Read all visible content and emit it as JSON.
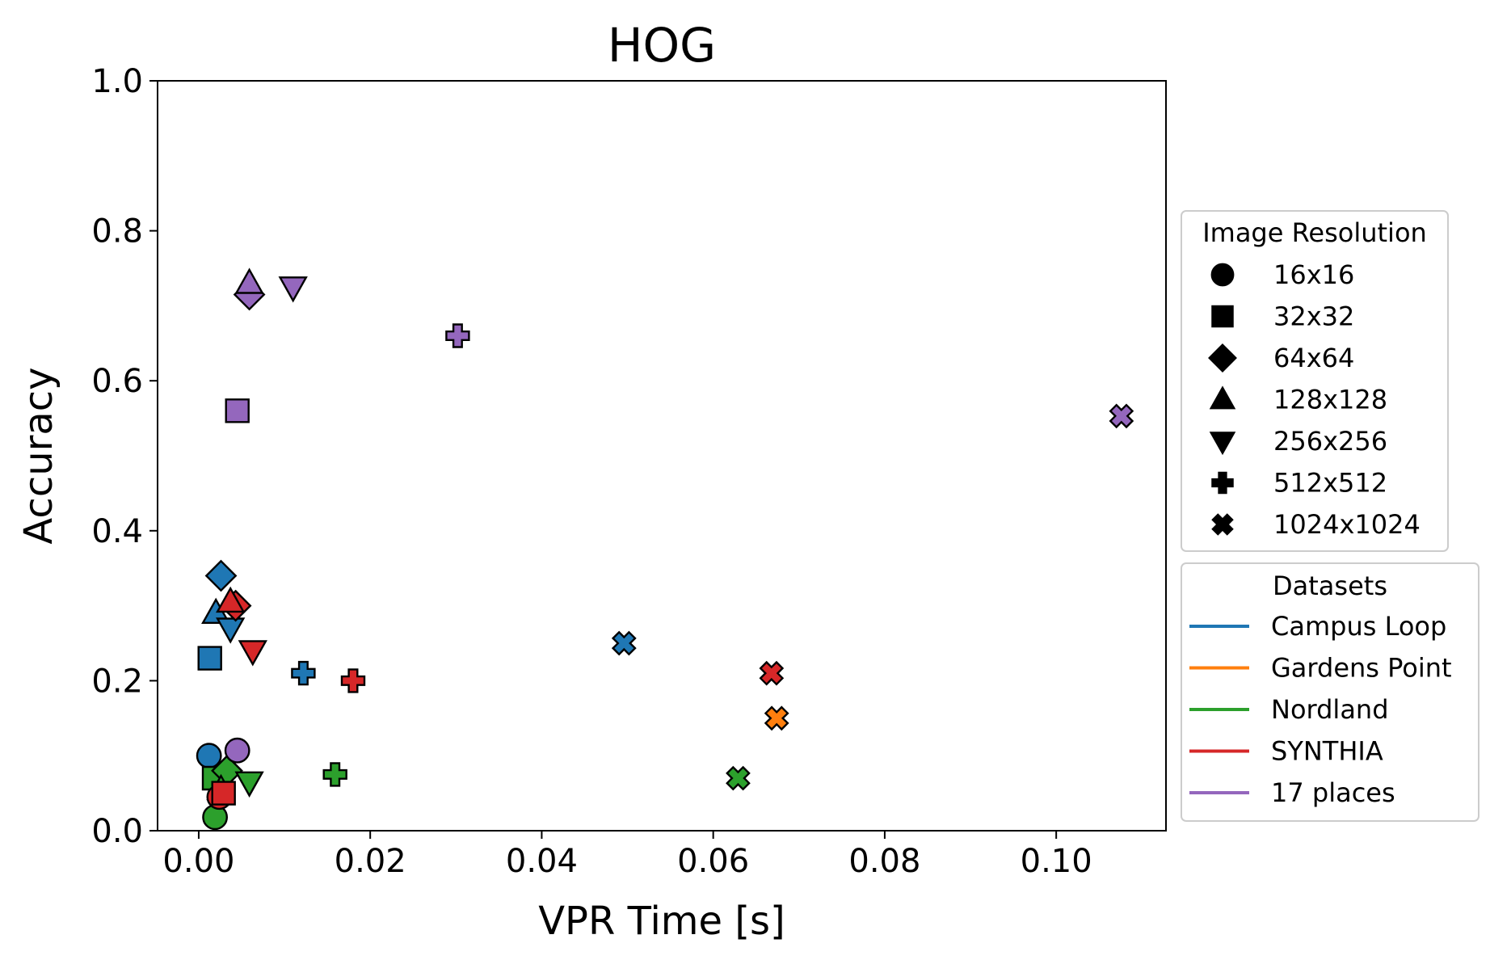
{
  "chart_data": {
    "type": "scatter",
    "title": "HOG",
    "xlabel": "VPR Time [s]",
    "ylabel": "Accuracy",
    "xlim": [
      -0.0048,
      0.1128
    ],
    "ylim": [
      0.0,
      1.0
    ],
    "x_ticks": [
      {
        "value": 0.0,
        "label": "0.00"
      },
      {
        "value": 0.02,
        "label": "0.02"
      },
      {
        "value": 0.04,
        "label": "0.04"
      },
      {
        "value": 0.06,
        "label": "0.06"
      },
      {
        "value": 0.08,
        "label": "0.08"
      },
      {
        "value": 0.1,
        "label": "0.10"
      }
    ],
    "y_ticks": [
      {
        "value": 0.0,
        "label": "0.0"
      },
      {
        "value": 0.2,
        "label": "0.2"
      },
      {
        "value": 0.4,
        "label": "0.4"
      },
      {
        "value": 0.6,
        "label": "0.6"
      },
      {
        "value": 0.8,
        "label": "0.8"
      },
      {
        "value": 1.0,
        "label": "1.0"
      }
    ],
    "grid": false,
    "legend_placement": "right, outside plot",
    "legends": {
      "resolution": {
        "title": "Image Resolution",
        "entries": [
          {
            "marker": "circle",
            "label": "16x16"
          },
          {
            "marker": "square",
            "label": "32x32"
          },
          {
            "marker": "diamond",
            "label": "64x64"
          },
          {
            "marker": "triangle-up",
            "label": "128x128"
          },
          {
            "marker": "triangle-down",
            "label": "256x256"
          },
          {
            "marker": "plus",
            "label": "512x512"
          },
          {
            "marker": "x",
            "label": "1024x1024"
          }
        ]
      },
      "datasets": {
        "title": "Datasets",
        "entries": [
          {
            "label": "Campus Loop",
            "color": "#1f77b4"
          },
          {
            "label": "Gardens Point",
            "color": "#ff7f0e"
          },
          {
            "label": "Nordland",
            "color": "#2ca02c"
          },
          {
            "label": "SYNTHIA",
            "color": "#d62728"
          },
          {
            "label": "17 places",
            "color": "#9467bd"
          }
        ]
      }
    },
    "series": [
      {
        "name": "Campus Loop",
        "color": "#1f77b4",
        "points": [
          {
            "resolution": "16x16",
            "x": 0.0012,
            "y": 0.1
          },
          {
            "resolution": "32x32",
            "x": 0.0013,
            "y": 0.23
          },
          {
            "resolution": "64x64",
            "x": 0.0026,
            "y": 0.34
          },
          {
            "resolution": "128x128",
            "x": 0.002,
            "y": 0.29
          },
          {
            "resolution": "256x256",
            "x": 0.0037,
            "y": 0.27
          },
          {
            "resolution": "512x512",
            "x": 0.0122,
            "y": 0.21
          },
          {
            "resolution": "1024x1024",
            "x": 0.0496,
            "y": 0.25
          }
        ]
      },
      {
        "name": "Gardens Point",
        "color": "#ff7f0e",
        "points": [
          {
            "resolution": "1024x1024",
            "x": 0.0674,
            "y": 0.15
          }
        ]
      },
      {
        "name": "Nordland",
        "color": "#2ca02c",
        "points": [
          {
            "resolution": "16x16",
            "x": 0.0019,
            "y": 0.018
          },
          {
            "resolution": "32x32",
            "x": 0.0018,
            "y": 0.07
          },
          {
            "resolution": "64x64",
            "x": 0.0033,
            "y": 0.08
          },
          {
            "resolution": "128x128",
            "x": 0.0026,
            "y": 0.055
          },
          {
            "resolution": "256x256",
            "x": 0.0059,
            "y": 0.065
          },
          {
            "resolution": "512x512",
            "x": 0.0159,
            "y": 0.075
          },
          {
            "resolution": "1024x1024",
            "x": 0.0629,
            "y": 0.07
          }
        ]
      },
      {
        "name": "SYNTHIA",
        "color": "#d62728",
        "points": [
          {
            "resolution": "16x16",
            "x": 0.0024,
            "y": 0.045
          },
          {
            "resolution": "32x32",
            "x": 0.0029,
            "y": 0.05
          },
          {
            "resolution": "64x64",
            "x": 0.0043,
            "y": 0.3
          },
          {
            "resolution": "128x128",
            "x": 0.0037,
            "y": 0.305
          },
          {
            "resolution": "256x256",
            "x": 0.0063,
            "y": 0.24
          },
          {
            "resolution": "512x512",
            "x": 0.018,
            "y": 0.2
          },
          {
            "resolution": "1024x1024",
            "x": 0.0668,
            "y": 0.21
          }
        ]
      },
      {
        "name": "17 places",
        "color": "#9467bd",
        "points": [
          {
            "resolution": "16x16",
            "x": 0.0045,
            "y": 0.107
          },
          {
            "resolution": "32x32",
            "x": 0.0045,
            "y": 0.56
          },
          {
            "resolution": "64x64",
            "x": 0.0059,
            "y": 0.715
          },
          {
            "resolution": "128x128",
            "x": 0.0059,
            "y": 0.73
          },
          {
            "resolution": "256x256",
            "x": 0.011,
            "y": 0.725
          },
          {
            "resolution": "512x512",
            "x": 0.0302,
            "y": 0.66
          },
          {
            "resolution": "1024x1024",
            "x": 0.1076,
            "y": 0.553
          }
        ]
      }
    ]
  }
}
